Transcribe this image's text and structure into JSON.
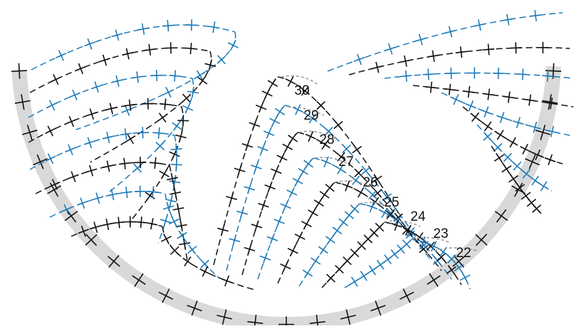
{
  "colors": {
    "background": "#ffffff",
    "band": "#d9d9d9",
    "stitch_black": "#111111",
    "stitch_blue": "#1f7bb8",
    "chain_gray": "#9a9a9a"
  },
  "icons": {
    "single_crochet": "cross-stitch-icon",
    "chain_space": "dashed-chain-icon"
  },
  "row_labels": [
    {
      "number": "22"
    },
    {
      "number": "23"
    },
    {
      "number": "24"
    },
    {
      "number": "25"
    },
    {
      "number": "26"
    },
    {
      "number": "27"
    },
    {
      "number": "28"
    },
    {
      "number": "29"
    },
    {
      "number": "30"
    }
  ]
}
